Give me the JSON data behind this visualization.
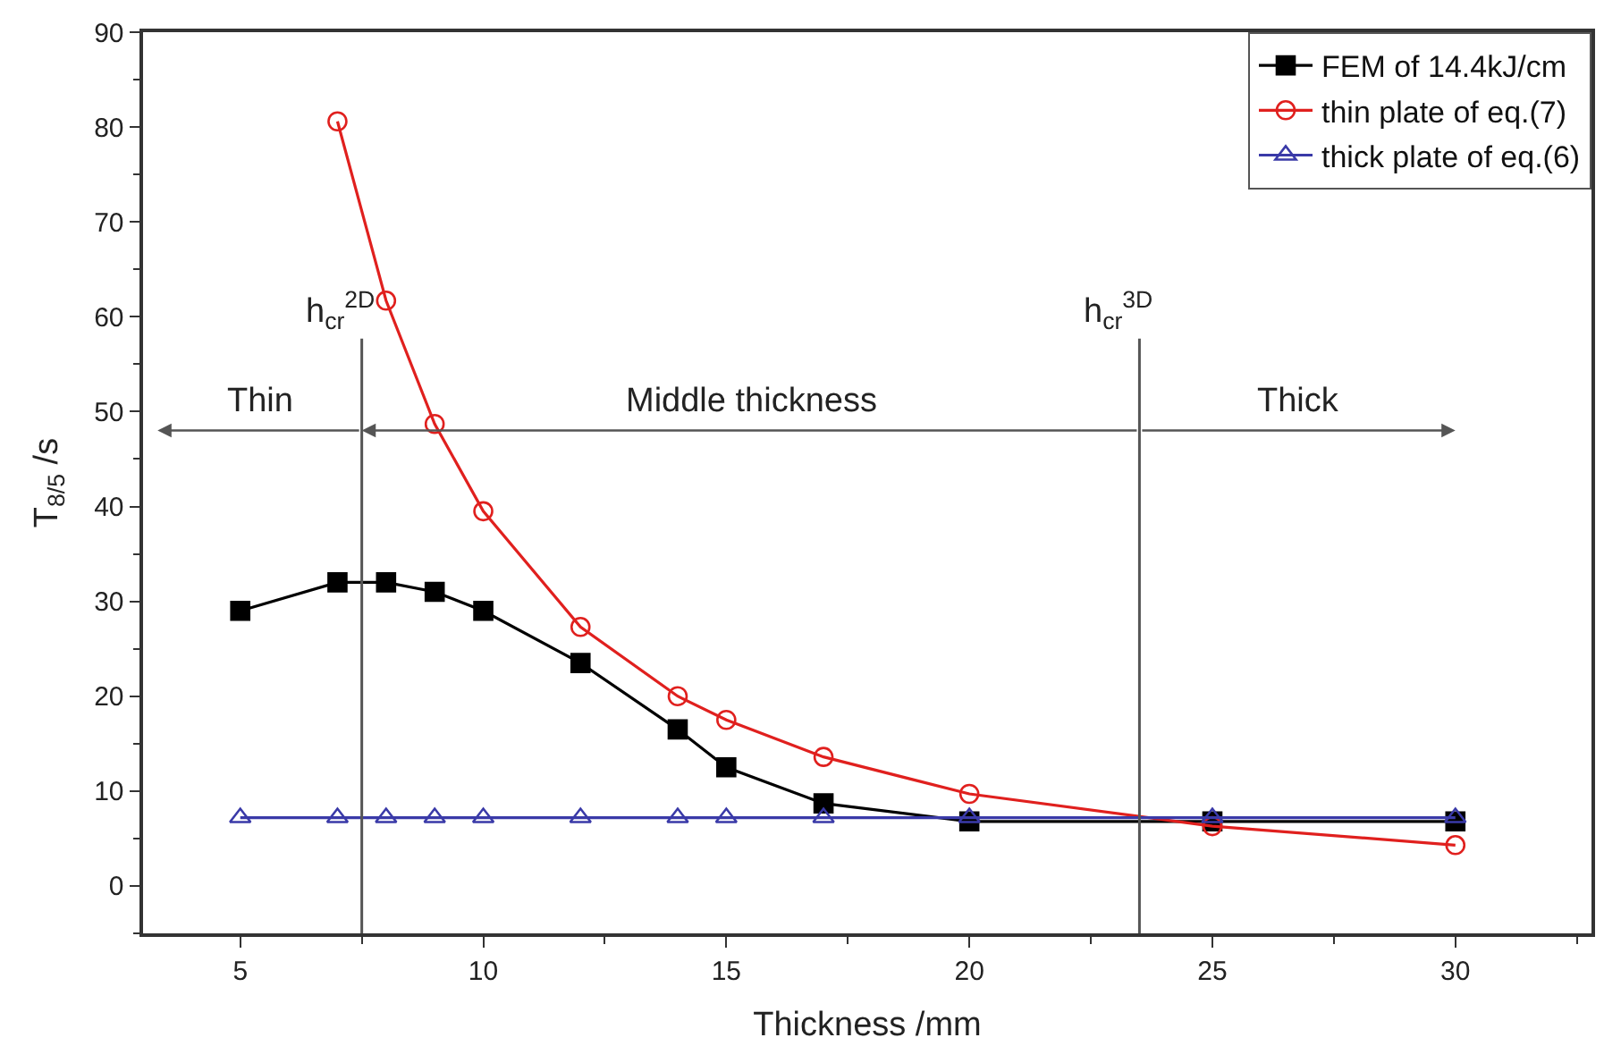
{
  "chart_data": {
    "type": "line",
    "xlabel": "Thickness /mm",
    "ylabel": "T$_{8/5}$ /s",
    "xlim": [
      3,
      32.8
    ],
    "ylim": [
      -5,
      90
    ],
    "xticks": [
      5,
      10,
      15,
      20,
      25,
      30
    ],
    "yticks": [
      0,
      10,
      20,
      30,
      40,
      50,
      60,
      70,
      80,
      90
    ],
    "legend": "top right",
    "series": [
      {
        "name": "FEM of 14.4kJ/cm",
        "color": "#000000",
        "marker": "square",
        "x": [
          5,
          7,
          8,
          9,
          10,
          12,
          14,
          15,
          17,
          20,
          25,
          30
        ],
        "values": [
          29,
          32,
          32,
          31,
          29,
          23.5,
          16.5,
          12.5,
          8.7,
          6.8,
          6.8,
          6.8
        ]
      },
      {
        "name": "thin plate of eq.(7)",
        "color": "#e0201e",
        "marker": "circle",
        "x": [
          7,
          8,
          9,
          10,
          12,
          14,
          15,
          17,
          20,
          25,
          30
        ],
        "values": [
          80.6,
          61.7,
          48.7,
          39.5,
          27.3,
          20,
          17.5,
          13.6,
          9.7,
          6.3,
          4.3
        ]
      },
      {
        "name": "thick plate of eq.(6)",
        "color": "#3a3aa8",
        "marker": "triangle",
        "x": [
          5,
          7,
          8,
          9,
          10,
          12,
          14,
          15,
          17,
          20,
          25,
          30
        ],
        "values": [
          7.2,
          7.2,
          7.2,
          7.2,
          7.2,
          7.2,
          7.2,
          7.2,
          7.2,
          7.2,
          7.2,
          7.2
        ]
      }
    ],
    "ref_lines": [
      {
        "axis": "x",
        "value": 7.5,
        "label": "h$_{cr}$$^{2D}$",
        "color": "#555555"
      },
      {
        "axis": "x",
        "value": 23.5,
        "label": "h$_{cr}$$^{3D}$",
        "color": "#555555"
      }
    ],
    "annotations": [
      "Thin",
      "Middle thickness",
      "Thick"
    ]
  }
}
